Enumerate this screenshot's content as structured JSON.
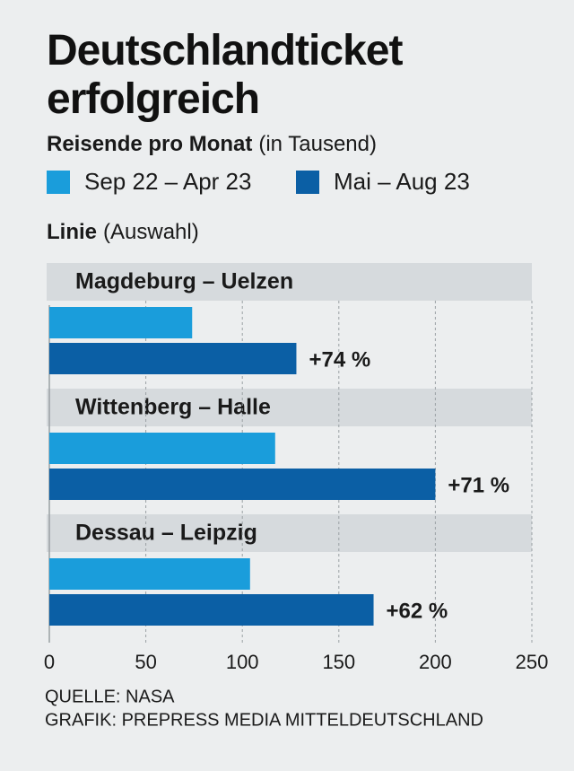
{
  "chart_data": {
    "type": "hbar",
    "title": "Deutschlandticket erfolgreich",
    "subtitle": "Reisende pro Monat",
    "unit": "(in Tausend)",
    "category_label": "Linie",
    "category_note": "(Auswahl)",
    "categories": [
      "Magdeburg – Uelzen",
      "Wittenberg – Halle",
      "Dessau – Leipzig"
    ],
    "series": [
      {
        "name": "Sep 22 – Apr 23",
        "color": "#1a9ddb",
        "values": [
          74,
          117,
          104
        ]
      },
      {
        "name": "Mai – Aug 23",
        "color": "#0b5fa5",
        "values": [
          128,
          200,
          168
        ]
      }
    ],
    "annotations": [
      "+74 %",
      "+71 %",
      "+62 %"
    ],
    "xlim": [
      0,
      250
    ],
    "xticks": [
      0,
      50,
      100,
      150,
      200,
      250
    ],
    "grid": true,
    "source": "QUELLE: NASA",
    "credit": "GRAFIK: PREPRESS MEDIA MITTELDEUTSCHLAND"
  }
}
